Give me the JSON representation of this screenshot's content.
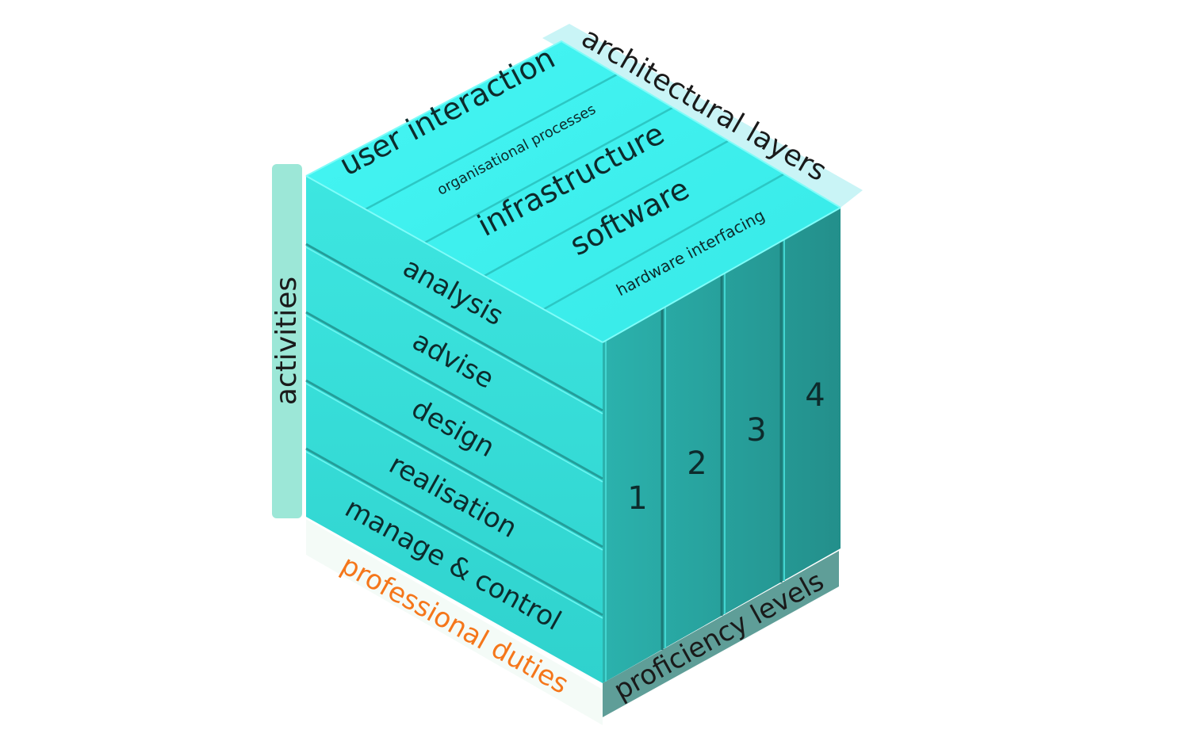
{
  "axes": {
    "architectural_layers": "architectural layers",
    "activities": "activities",
    "professional_duties": "professional duties",
    "proficiency_levels": "proficiency levels"
  },
  "layers": [
    "user interaction",
    "organisational processes",
    "infrastructure",
    "software",
    "hardware interfacing"
  ],
  "activities": [
    "analysis",
    "advise",
    "design",
    "realisation",
    "manage & control"
  ],
  "levels": [
    "1",
    "2",
    "3",
    "4"
  ],
  "colors": {
    "top_face": "#3ef2f0",
    "front_face": "#34dcd7",
    "side_face": "#28a6a2",
    "activities_band": "#9ce7d7",
    "layers_band": "#c9f4f6",
    "levels_band": "#5f9e98",
    "duties_text": "#f5761a"
  }
}
